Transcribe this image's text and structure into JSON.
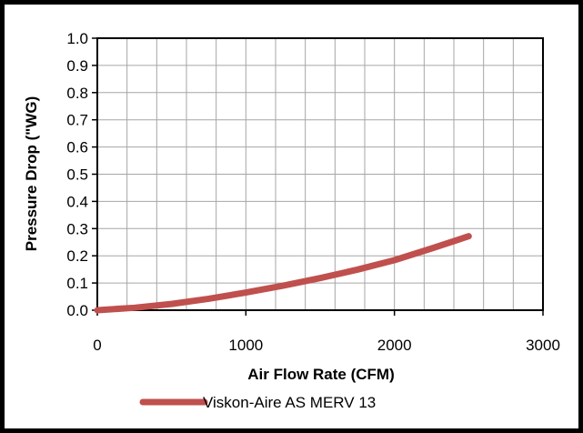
{
  "chart_data": {
    "type": "line",
    "xlabel": "Air Flow Rate (CFM)",
    "ylabel": "Pressure Drop (\"WG)",
    "xlim": [
      0,
      3000
    ],
    "ylim": [
      0,
      1.0
    ],
    "x_ticks": [
      "0",
      "1000",
      "2000",
      "3000"
    ],
    "y_ticks": [
      "0.0",
      "0.1",
      "0.2",
      "0.3",
      "0.4",
      "0.5",
      "0.6",
      "0.7",
      "0.8",
      "0.9",
      "1.0"
    ],
    "x_minor_step": 200,
    "y_step": 0.1,
    "grid": true,
    "legend_position": "bottom",
    "colors": {
      "series": "#C0504D",
      "grid": "#A6A6A6",
      "axis": "#000000"
    },
    "series": [
      {
        "name": "Viskon-Aire AS MERV 13",
        "x": [
          0,
          250,
          500,
          750,
          1000,
          1250,
          1500,
          1750,
          2000,
          2250,
          2500
        ],
        "y": [
          0.0,
          0.009,
          0.023,
          0.042,
          0.065,
          0.09,
          0.118,
          0.149,
          0.184,
          0.227,
          0.272
        ]
      }
    ]
  }
}
